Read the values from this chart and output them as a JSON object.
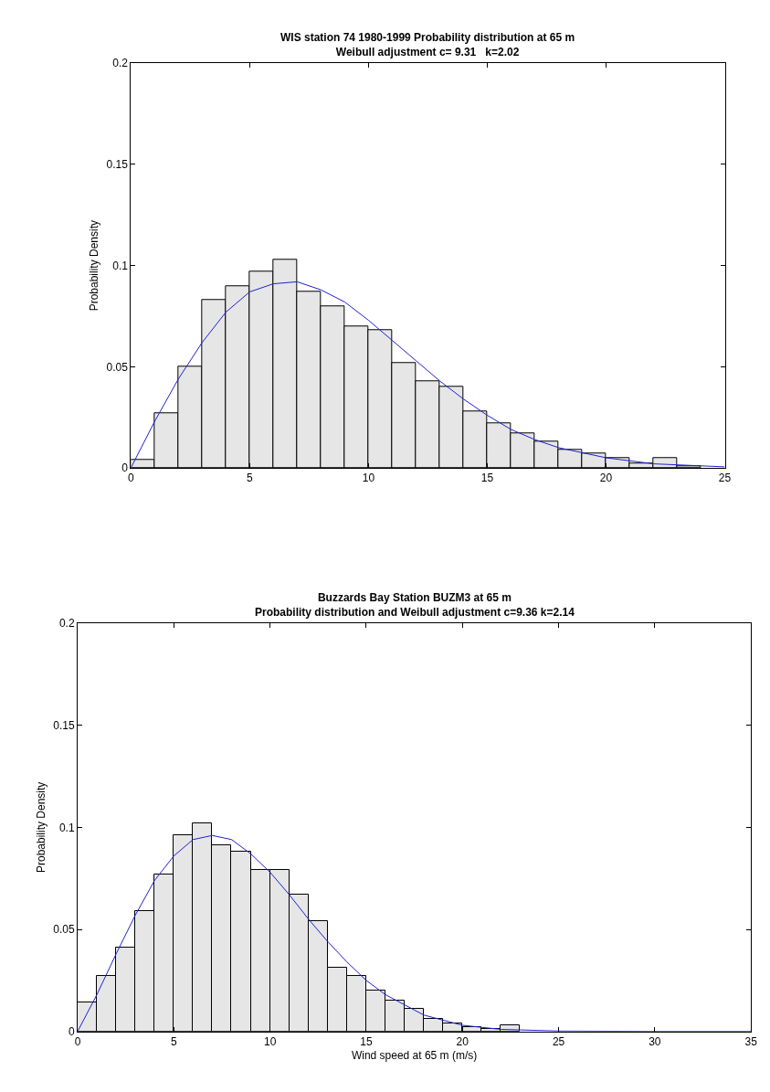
{
  "chart_data": [
    {
      "type": "histogram",
      "title": "WIS station 74 1980-1999 Probability distribution at 65 m\nWeibull adjustment c= 9.31   k=2.02",
      "ylabel": "Probability Density",
      "series": [
        {
          "color": "#e6e6e6",
          "bins": [
            0,
            1,
            2,
            3,
            4,
            5,
            6,
            7,
            8,
            9,
            10,
            11,
            12,
            13,
            14,
            15,
            16,
            17,
            18,
            19,
            20,
            21,
            22,
            23,
            24,
            25
          ],
          "values": [
            0.004,
            0.027,
            0.05,
            0.083,
            0.09,
            0.097,
            0.103,
            0.087,
            0.08,
            0.07,
            0.068,
            0.052,
            0.043,
            0.04,
            0.028,
            0.022,
            0.017,
            0.013,
            0.009,
            0.007,
            0.005,
            0.002,
            0.005,
            0.001,
            0
          ]
        },
        {
          "type": "line",
          "color": "#2020d0",
          "x": [
            0,
            1,
            2,
            3,
            4,
            5,
            6,
            7,
            8,
            9,
            10,
            11,
            12,
            13,
            14,
            15,
            16,
            17,
            18,
            20,
            22,
            25
          ],
          "values": [
            0,
            0.023,
            0.044,
            0.062,
            0.077,
            0.087,
            0.091,
            0.092,
            0.088,
            0.082,
            0.073,
            0.063,
            0.053,
            0.043,
            0.034,
            0.026,
            0.019,
            0.014,
            0.01,
            0.005,
            0.002,
            0.0005
          ]
        }
      ],
      "xlim": [
        0,
        25
      ],
      "xticks": [
        0,
        5,
        10,
        15,
        20,
        25
      ],
      "ylim": [
        0,
        0.2
      ],
      "yticks": [
        0,
        0.05,
        0.1,
        0.15,
        0.2
      ],
      "line_style": "solid",
      "marker": "none"
    },
    {
      "type": "histogram",
      "title": "Buzzards Bay Station BUZM3 at 65 m\nProbability distribution and Weibull adjustment c=9.36 k=2.14",
      "xlabel": "Wind speed at 65 m (m/s)",
      "ylabel": "Probability Density",
      "series": [
        {
          "color": "#e6e6e6",
          "bins": [
            0,
            1,
            2,
            3,
            4,
            5,
            6,
            7,
            8,
            9,
            10,
            11,
            12,
            13,
            14,
            15,
            16,
            17,
            18,
            19,
            20,
            21,
            22,
            23,
            24,
            25,
            26,
            27,
            28,
            29,
            30,
            31,
            32,
            33,
            34,
            35
          ],
          "values": [
            0.014,
            0.027,
            0.041,
            0.059,
            0.077,
            0.096,
            0.102,
            0.091,
            0.088,
            0.079,
            0.079,
            0.067,
            0.054,
            0.031,
            0.027,
            0.02,
            0.015,
            0.011,
            0.006,
            0.004,
            0.002,
            0.001,
            0.003,
            0,
            0,
            0,
            0,
            0,
            0,
            0,
            0,
            0,
            0,
            0,
            0
          ]
        },
        {
          "type": "line",
          "color": "#2020d0",
          "x": [
            0,
            1,
            2,
            3,
            4,
            5,
            6,
            7,
            8,
            9,
            10,
            11,
            12,
            13,
            14,
            15,
            16,
            17,
            18,
            20,
            22,
            25,
            30,
            35
          ],
          "values": [
            0,
            0.018,
            0.038,
            0.057,
            0.074,
            0.086,
            0.094,
            0.096,
            0.094,
            0.087,
            0.078,
            0.067,
            0.055,
            0.044,
            0.034,
            0.025,
            0.018,
            0.013,
            0.008,
            0.003,
            0.001,
            0.0002,
            0,
            0
          ]
        }
      ],
      "xlim": [
        0,
        35
      ],
      "xticks": [
        0,
        5,
        10,
        15,
        20,
        25,
        30,
        35
      ],
      "ylim": [
        0,
        0.2
      ],
      "yticks": [
        0,
        0.05,
        0.1,
        0.15,
        0.2
      ],
      "line_style": "solid",
      "marker": "none"
    }
  ]
}
